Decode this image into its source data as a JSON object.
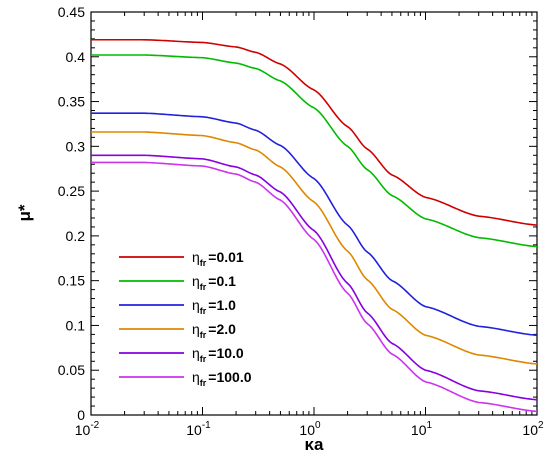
{
  "chart_data": {
    "type": "line",
    "xscale": "log",
    "xlabel": "κa",
    "ylabel": "μ*",
    "xlim": [
      0.01,
      100
    ],
    "ylim": [
      0,
      0.45
    ],
    "grid": false,
    "legend_placement": "bottom-left",
    "x_ticks": [
      {
        "value": 0.01,
        "base": "10",
        "exp": "-2"
      },
      {
        "value": 0.1,
        "base": "10",
        "exp": "-1"
      },
      {
        "value": 1,
        "base": "10",
        "exp": "0"
      },
      {
        "value": 10,
        "base": "10",
        "exp": "1"
      },
      {
        "value": 100,
        "base": "10",
        "exp": "2"
      }
    ],
    "y_ticks": [
      {
        "value": 0,
        "label": "0"
      },
      {
        "value": 0.05,
        "label": "0.05"
      },
      {
        "value": 0.1,
        "label": "0.1"
      },
      {
        "value": 0.15,
        "label": "0.15"
      },
      {
        "value": 0.2,
        "label": "0.2"
      },
      {
        "value": 0.25,
        "label": "0.25"
      },
      {
        "value": 0.3,
        "label": "0.3"
      },
      {
        "value": 0.35,
        "label": "0.35"
      },
      {
        "value": 0.4,
        "label": "0.4"
      },
      {
        "value": 0.45,
        "label": "0.45"
      }
    ],
    "x": [
      0.01,
      0.03,
      0.1,
      0.2,
      0.3,
      0.5,
      1,
      2,
      3,
      5,
      10,
      30,
      100
    ],
    "series": [
      {
        "name_sym": "η",
        "name_sub": "fr",
        "name_val": "=0.01",
        "color": "#d00000",
        "values": [
          0.419,
          0.419,
          0.416,
          0.411,
          0.405,
          0.392,
          0.363,
          0.322,
          0.297,
          0.268,
          0.243,
          0.222,
          0.212
        ]
      },
      {
        "name_sym": "η",
        "name_sub": "fr",
        "name_val": "=0.1",
        "color": "#00bb00",
        "values": [
          0.402,
          0.402,
          0.399,
          0.393,
          0.387,
          0.373,
          0.343,
          0.3,
          0.274,
          0.245,
          0.219,
          0.198,
          0.188
        ]
      },
      {
        "name_sym": "η",
        "name_sub": "fr",
        "name_val": "=1.0",
        "color": "#2222dd",
        "values": [
          0.337,
          0.337,
          0.333,
          0.326,
          0.318,
          0.301,
          0.264,
          0.212,
          0.182,
          0.15,
          0.121,
          0.099,
          0.089
        ]
      },
      {
        "name_sym": "η",
        "name_sub": "fr",
        "name_val": "=2.0",
        "color": "#dd8800",
        "values": [
          0.316,
          0.316,
          0.312,
          0.304,
          0.296,
          0.277,
          0.238,
          0.183,
          0.151,
          0.118,
          0.089,
          0.067,
          0.057
        ]
      },
      {
        "name_sym": "η",
        "name_sub": "fr",
        "name_val": "=10.0",
        "color": "#8800dd",
        "values": [
          0.29,
          0.29,
          0.286,
          0.277,
          0.268,
          0.249,
          0.206,
          0.147,
          0.114,
          0.08,
          0.05,
          0.027,
          0.017
        ]
      },
      {
        "name_sym": "η",
        "name_sub": "fr",
        "name_val": "=100.0",
        "color": "#cc33ee",
        "values": [
          0.282,
          0.282,
          0.278,
          0.269,
          0.26,
          0.24,
          0.196,
          0.136,
          0.102,
          0.068,
          0.037,
          0.014,
          0.004
        ]
      }
    ]
  }
}
